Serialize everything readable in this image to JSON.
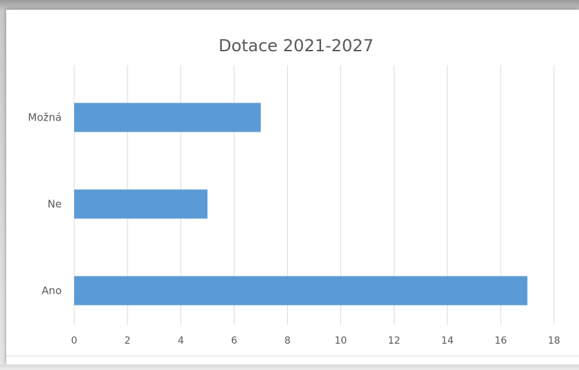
{
  "chart_data": {
    "type": "bar",
    "orientation": "horizontal",
    "title": "Dotace 2021-2027",
    "categories": [
      "Možná",
      "Ne",
      "Ano"
    ],
    "values": [
      7,
      5,
      17
    ],
    "xlim": [
      0,
      18
    ],
    "xticks": [
      "0",
      "2",
      "4",
      "6",
      "8",
      "10",
      "12",
      "14",
      "16",
      "18"
    ],
    "grid": true,
    "legend": "none",
    "colors": {
      "bar": "#5b9bd5",
      "grid": "#d9d9d9",
      "text": "#595959",
      "title": "#595959"
    }
  }
}
